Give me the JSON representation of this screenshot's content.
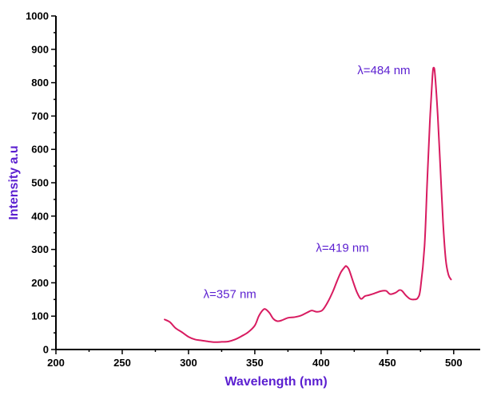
{
  "chart_data": {
    "type": "line",
    "title": "",
    "xlabel": "Wavelength (nm)",
    "ylabel": "Intensity a.u",
    "xlim": [
      200,
      520
    ],
    "ylim": [
      0,
      1000
    ],
    "x_ticks": [
      200,
      250,
      300,
      350,
      400,
      450,
      500
    ],
    "x_tick_labels": [
      "200",
      "250",
      "300",
      "350",
      "400",
      "450",
      "500"
    ],
    "y_ticks": [
      0,
      100,
      200,
      300,
      400,
      500,
      600,
      700,
      800,
      900,
      1000
    ],
    "y_tick_labels": [
      "0",
      "100",
      "200",
      "300",
      "400",
      "500",
      "600",
      "700",
      "800",
      "900",
      "1000"
    ],
    "grid": false,
    "colors": {
      "series": "#d81b60",
      "axis_title": "#5b1fd0",
      "annotation": "#5b1fd0"
    },
    "series": [
      {
        "x": [
          282,
          286,
          290,
          295,
          300,
          305,
          310,
          315,
          320,
          325,
          330,
          335,
          340,
          345,
          350,
          353,
          356,
          358,
          361,
          364,
          367,
          370,
          375,
          380,
          385,
          390,
          393,
          397,
          401,
          405,
          409,
          412,
          415,
          418,
          419,
          421,
          424,
          427,
          430,
          433,
          436,
          440,
          445,
          449,
          452,
          456,
          459,
          461,
          464,
          467,
          470,
          473,
          475,
          478,
          480,
          482,
          484,
          485,
          486,
          488,
          490,
          492,
          494,
          496,
          498
        ],
        "y": [
          90,
          82,
          65,
          52,
          38,
          30,
          27,
          24,
          22,
          23,
          24,
          30,
          40,
          52,
          72,
          100,
          118,
          121,
          110,
          92,
          85,
          87,
          95,
          97,
          102,
          112,
          117,
          113,
          118,
          142,
          175,
          205,
          232,
          248,
          250,
          240,
          205,
          172,
          152,
          160,
          163,
          168,
          175,
          176,
          166,
          170,
          178,
          176,
          162,
          152,
          150,
          155,
          185,
          310,
          500,
          680,
          820,
          845,
          820,
          700,
          540,
          380,
          270,
          225,
          210
        ]
      }
    ],
    "annotations": [
      {
        "text": "λ=357 nm",
        "x": 357,
        "y": 121
      },
      {
        "text": "λ=419 nm",
        "x": 419,
        "y": 250
      },
      {
        "text": "λ=484 nm",
        "x": 484,
        "y": 845
      }
    ]
  }
}
